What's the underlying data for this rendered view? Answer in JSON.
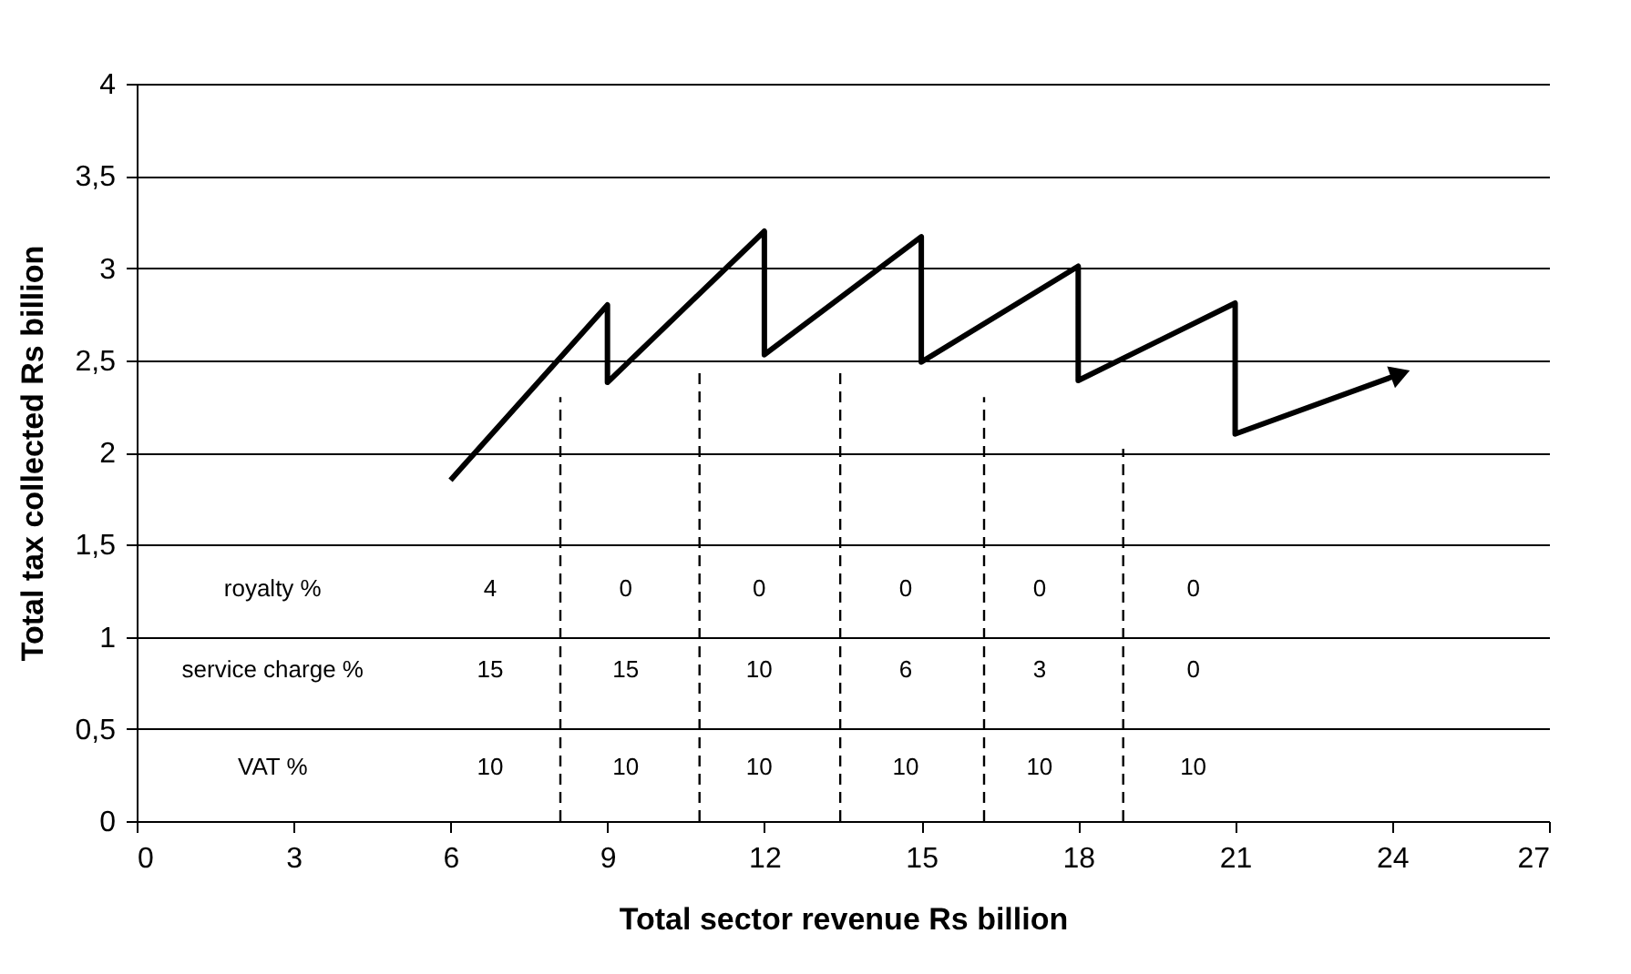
{
  "chart_data": {
    "type": "line",
    "xlabel": "Total sector revenue Rs billion",
    "ylabel": "Total tax collected Rs billion",
    "xlim": [
      0,
      27
    ],
    "xticks": [
      0,
      3,
      6,
      9,
      12,
      15,
      18,
      21,
      24,
      27
    ],
    "ylim": [
      0,
      4
    ],
    "yticks": [
      0,
      {
        "value": 0.5,
        "label": "0,5"
      },
      1,
      {
        "value": 1.5,
        "label": "1,5"
      },
      2,
      {
        "value": 2.5,
        "label": "2,5"
      },
      3,
      {
        "value": 3.5,
        "label": "3,5"
      },
      4
    ],
    "grid": "y",
    "series": [
      {
        "color": "#000000",
        "line_style": "solid",
        "x": [
          6,
          9,
          9,
          12,
          12,
          15,
          15,
          18,
          18,
          21,
          21,
          24.1
        ],
        "values": [
          1.85,
          2.8,
          2.38,
          3.2,
          2.53,
          3.17,
          2.49,
          3.01,
          2.39,
          2.81,
          2.1,
          2.42
        ]
      },
      {
        "color": "#000000",
        "line_style": "dashed",
        "x": [
          8.1,
          8.1
        ],
        "values": [
          0,
          2.3
        ]
      },
      {
        "color": "#000000",
        "line_style": "dashed",
        "x": [
          10.76,
          10.76
        ],
        "values": [
          0,
          2.44
        ]
      },
      {
        "color": "#000000",
        "line_style": "dashed",
        "x": [
          13.45,
          13.45
        ],
        "values": [
          0,
          2.44
        ]
      },
      {
        "color": "#000000",
        "line_style": "dashed",
        "x": [
          16.2,
          16.2
        ],
        "values": [
          0,
          2.3
        ]
      },
      {
        "color": "#000000",
        "line_style": "dashed",
        "x": [
          18.86,
          18.86
        ],
        "values": [
          0,
          2.02
        ]
      }
    ],
    "annotations": [
      "royalty %",
      "4",
      "0",
      "0",
      "0",
      "0",
      "0",
      "service charge %",
      "15",
      "15",
      "10",
      "6",
      "3",
      "0",
      "VAT %",
      "10",
      "10",
      "10",
      "10",
      "10",
      "10"
    ]
  }
}
